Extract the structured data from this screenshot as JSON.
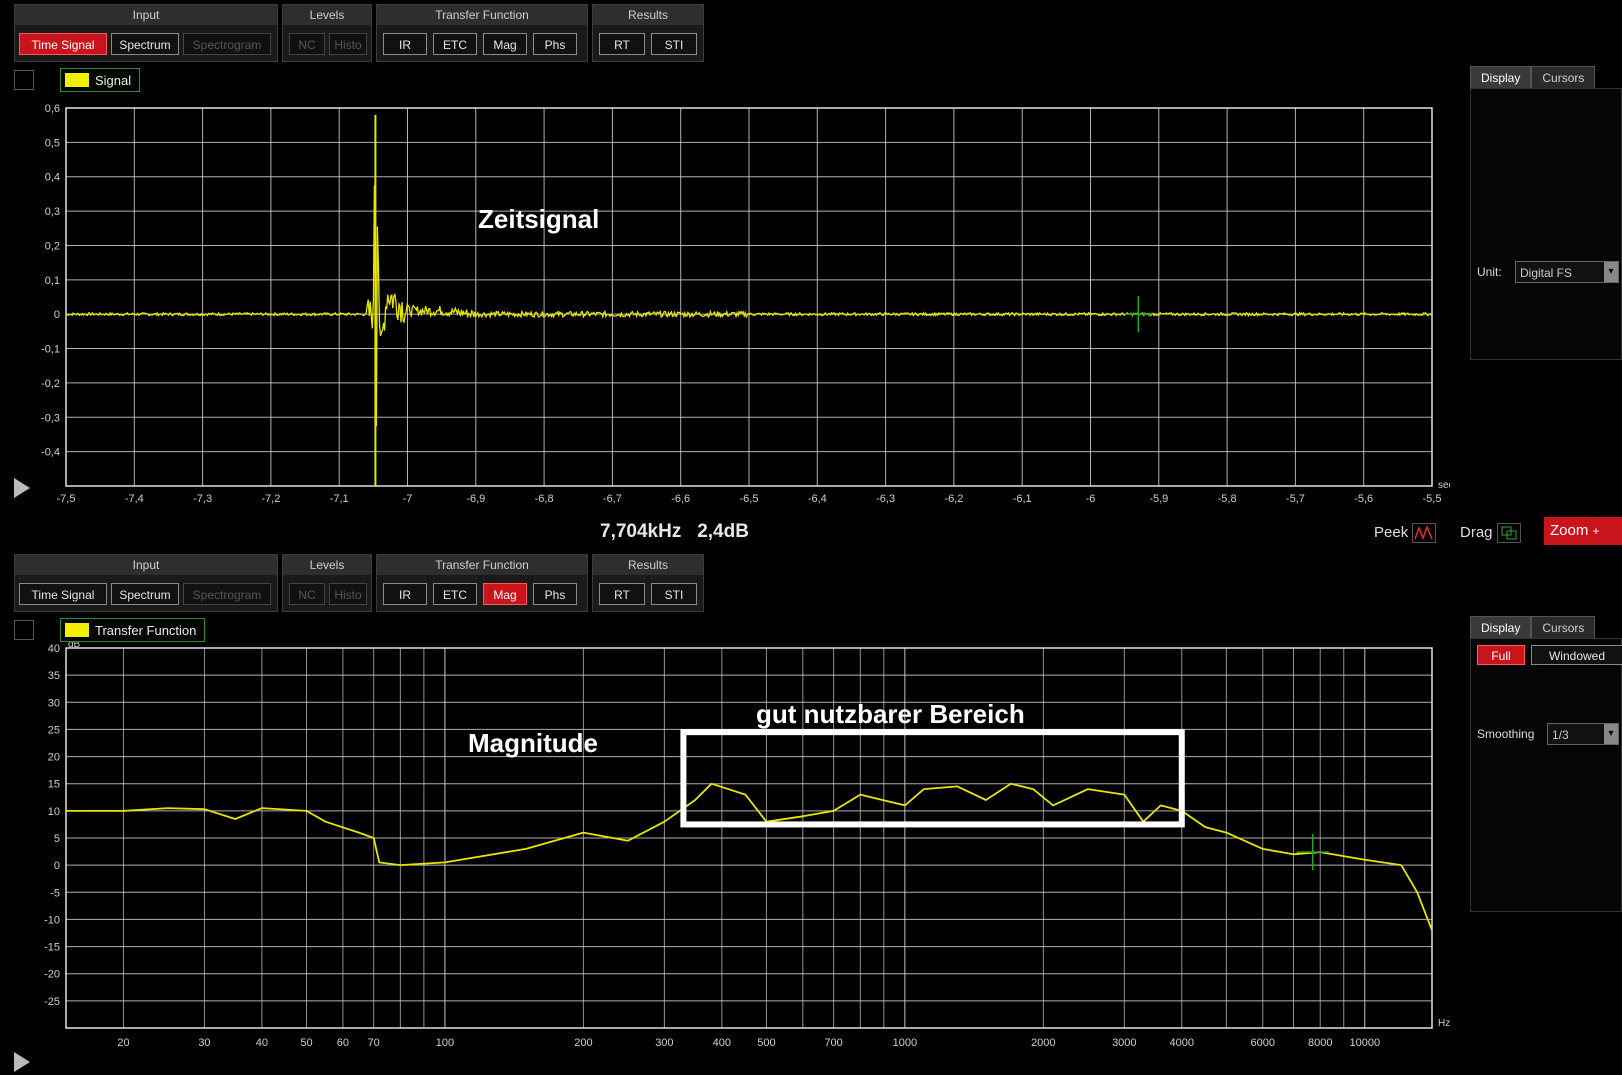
{
  "toolbar": {
    "input_title": "Input",
    "levels_title": "Levels",
    "transfer_title": "Transfer Function",
    "results_title": "Results",
    "time_signal": "Time Signal",
    "spectrum": "Spectrum",
    "spectrogram": "Spectrogram",
    "nc": "NC",
    "histo": "Histo",
    "ir": "IR",
    "etc": "ETC",
    "mag": "Mag",
    "phs": "Phs",
    "rt": "RT",
    "sti": "STI"
  },
  "top_pane": {
    "active_button": "Time Signal",
    "legend": "Signal",
    "annotation": "Zeitsignal",
    "x_unit": "sec",
    "y_ticks": [
      "0,6",
      "0,5",
      "0,4",
      "0,3",
      "0,2",
      "0,1",
      "0",
      "-0,1",
      "-0,2",
      "-0,3",
      "-0,4"
    ],
    "x_ticks": [
      "-7,5",
      "-7,4",
      "-7,3",
      "-7,2",
      "-7,1",
      "-7",
      "-6,9",
      "-6,8",
      "-6,7",
      "-6,6",
      "-6,5",
      "-6,4",
      "-6,3",
      "-6,2",
      "-6,1",
      "-6",
      "-5,9",
      "-5,8",
      "-5,7",
      "-5,6",
      "-5,5"
    ],
    "side_tabs": [
      "Display",
      "Cursors"
    ],
    "unit_label": "Unit:",
    "unit_value": "Digital FS"
  },
  "status": {
    "readout_freq": "7,704kHz",
    "readout_level": "2,4dB",
    "peek": "Peek",
    "drag": "Drag",
    "zoom": "Zoom"
  },
  "bottom_pane": {
    "active_button": "Mag",
    "legend": "Transfer Function",
    "annotation_title": "Magnitude",
    "annotation_range": "gut nutzbarer Bereich",
    "y_unit": "dB",
    "x_unit": "Hz",
    "y_ticks": [
      "40",
      "35",
      "30",
      "25",
      "20",
      "15",
      "10",
      "5",
      "0",
      "-5",
      "-10",
      "-15",
      "-20",
      "-25"
    ],
    "x_tick_labels": [
      "20",
      "30",
      "40",
      "50",
      "60",
      "70",
      "100",
      "200",
      "300",
      "400",
      "500",
      "700",
      "1000",
      "2000",
      "3000",
      "4000",
      "6000",
      "8000",
      "10000"
    ],
    "side_tabs": [
      "Display",
      "Cursors"
    ],
    "full_button": "Full",
    "windowed_button": "Windowed",
    "smoothing_label": "Smoothing",
    "smoothing_value": "1/3"
  },
  "colors": {
    "trace": "#e6e600",
    "grid": "#cfcfcf",
    "active": "#c8141a",
    "cursor": "#22aa22"
  },
  "chart_data": [
    {
      "type": "line",
      "series": [
        {
          "values": [
            [
              -7.5,
              0
            ],
            [
              -7.1,
              0
            ],
            [
              -7.05,
              0
            ],
            [
              -7.048,
              0.52
            ],
            [
              -7.046,
              -0.5
            ],
            [
              -7.044,
              0.3
            ],
            [
              -7.04,
              -0.12
            ],
            [
              -7.03,
              0.06
            ],
            [
              -7.0,
              0.01
            ],
            [
              -6.95,
              0.01
            ],
            [
              -6.9,
              0.0
            ],
            [
              -6.5,
              0.0
            ],
            [
              -6.0,
              0.0
            ],
            [
              -5.5,
              0.0
            ]
          ]
        }
      ],
      "xlim": [
        -7.5,
        -5.5
      ],
      "ylim": [
        -0.5,
        0.6
      ],
      "grid": true,
      "cursor": {
        "x": -5.93,
        "y": 0
      }
    },
    {
      "type": "line",
      "xscale": "log",
      "series": [
        {
          "values": [
            [
              15,
              10
            ],
            [
              20,
              10
            ],
            [
              25,
              10.5
            ],
            [
              30,
              10.3
            ],
            [
              35,
              8.5
            ],
            [
              40,
              10.5
            ],
            [
              50,
              10
            ],
            [
              55,
              8
            ],
            [
              65,
              6
            ],
            [
              70,
              5
            ],
            [
              72,
              0.5
            ],
            [
              80,
              0
            ],
            [
              100,
              0.5
            ],
            [
              150,
              3
            ],
            [
              200,
              6
            ],
            [
              250,
              4.5
            ],
            [
              300,
              8
            ],
            [
              350,
              12
            ],
            [
              380,
              15
            ],
            [
              450,
              13
            ],
            [
              500,
              8
            ],
            [
              600,
              9
            ],
            [
              700,
              10
            ],
            [
              800,
              13
            ],
            [
              1000,
              11
            ],
            [
              1100,
              14
            ],
            [
              1300,
              14.5
            ],
            [
              1500,
              12
            ],
            [
              1700,
              15
            ],
            [
              1900,
              14
            ],
            [
              2100,
              11
            ],
            [
              2500,
              14
            ],
            [
              3000,
              13
            ],
            [
              3300,
              8
            ],
            [
              3600,
              11
            ],
            [
              4000,
              10
            ],
            [
              4500,
              7
            ],
            [
              5000,
              6
            ],
            [
              6000,
              3
            ],
            [
              7000,
              2
            ],
            [
              8000,
              2.4
            ],
            [
              10000,
              1
            ],
            [
              12000,
              0
            ],
            [
              13000,
              -5
            ],
            [
              14000,
              -12
            ]
          ]
        }
      ],
      "xlim": [
        15,
        14000
      ],
      "ylim": [
        -30,
        40
      ],
      "grid": true,
      "cursor": {
        "x": 7704,
        "y": 2.4
      },
      "highlight_range": [
        330,
        4000
      ]
    }
  ]
}
